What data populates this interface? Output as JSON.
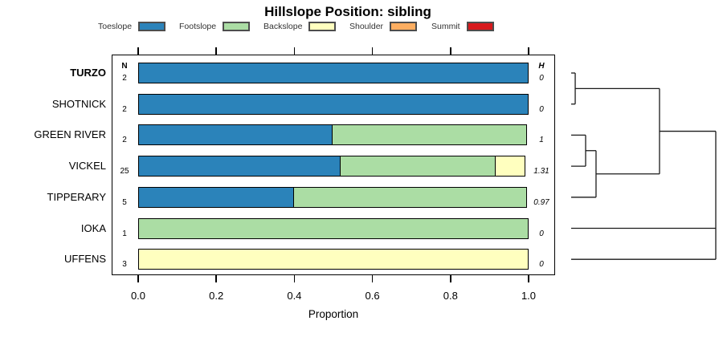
{
  "chart_data": {
    "type": "stacked-bar-horizontal",
    "title": "Hillslope Position: sibling",
    "xlabel": "Proportion",
    "xlim": [
      0,
      1
    ],
    "xtick_labels": [
      "0.0",
      "0.2",
      "0.4",
      "0.6",
      "0.8",
      "1.0"
    ],
    "xtick_values": [
      0.0,
      0.2,
      0.4,
      0.6,
      0.8,
      1.0
    ],
    "grid": false,
    "legend_position": "top",
    "legend": [
      {
        "label": "Toeslope",
        "color": "#2B83BA"
      },
      {
        "label": "Footslope",
        "color": "#ABDDA4"
      },
      {
        "label": "Backslope",
        "color": "#FFFFBF"
      },
      {
        "label": "Shoulder",
        "color": "#FDAE61"
      },
      {
        "label": "Summit",
        "color": "#D7191C"
      }
    ],
    "columns": {
      "n_header": "N",
      "h_header": "H"
    },
    "rows": [
      {
        "label": "TURZO",
        "bold": true,
        "n": "2",
        "H": "0",
        "segments": [
          {
            "cat": "Toeslope",
            "value": 1.0
          }
        ]
      },
      {
        "label": "SHOTNICK",
        "bold": false,
        "n": "2",
        "H": "0",
        "segments": [
          {
            "cat": "Toeslope",
            "value": 1.0
          }
        ]
      },
      {
        "label": "GREEN RIVER",
        "bold": false,
        "n": "2",
        "H": "1",
        "segments": [
          {
            "cat": "Toeslope",
            "value": 0.5
          },
          {
            "cat": "Footslope",
            "value": 0.5
          }
        ]
      },
      {
        "label": "VICKEL",
        "bold": false,
        "n": "25",
        "H": "1.31",
        "segments": [
          {
            "cat": "Toeslope",
            "value": 0.52
          },
          {
            "cat": "Footslope",
            "value": 0.4
          },
          {
            "cat": "Backslope",
            "value": 0.08
          }
        ]
      },
      {
        "label": "TIPPERARY",
        "bold": false,
        "n": "5",
        "H": "0.97",
        "segments": [
          {
            "cat": "Toeslope",
            "value": 0.4
          },
          {
            "cat": "Footslope",
            "value": 0.6
          }
        ]
      },
      {
        "label": "IOKA",
        "bold": false,
        "n": "1",
        "H": "0",
        "segments": [
          {
            "cat": "Footslope",
            "value": 1.0
          }
        ]
      },
      {
        "label": "UFFENS",
        "bold": false,
        "n": "3",
        "H": "0",
        "segments": [
          {
            "cat": "Backslope",
            "value": 1.0
          }
        ]
      }
    ],
    "dendrogram": {
      "leaves": [
        "TURZO",
        "SHOTNICK",
        "GREEN RIVER",
        "VICKEL",
        "TIPPERARY",
        "IOKA",
        "UFFENS"
      ],
      "merges": [
        {
          "id": "m1",
          "children": [
            "TURZO",
            "SHOTNICK"
          ],
          "height": 0.028
        },
        {
          "id": "m2",
          "children": [
            "GREEN RIVER",
            "VICKEL"
          ],
          "height": 0.1
        },
        {
          "id": "m3",
          "children": [
            "m2",
            "TIPPERARY"
          ],
          "height": 0.172
        },
        {
          "id": "m4",
          "children": [
            "m1",
            "m3"
          ],
          "height": 0.611
        },
        {
          "id": "m5",
          "children": [
            "m4",
            "IOKA",
            "UFFENS"
          ],
          "height": 1.0
        }
      ]
    },
    "colors": {
      "bar_border": "#000000",
      "box_border": "#000000",
      "dendro_line": "#1a1a1a",
      "legend_chip_border": "#4d4d4d",
      "legend_text": "#333333"
    }
  }
}
